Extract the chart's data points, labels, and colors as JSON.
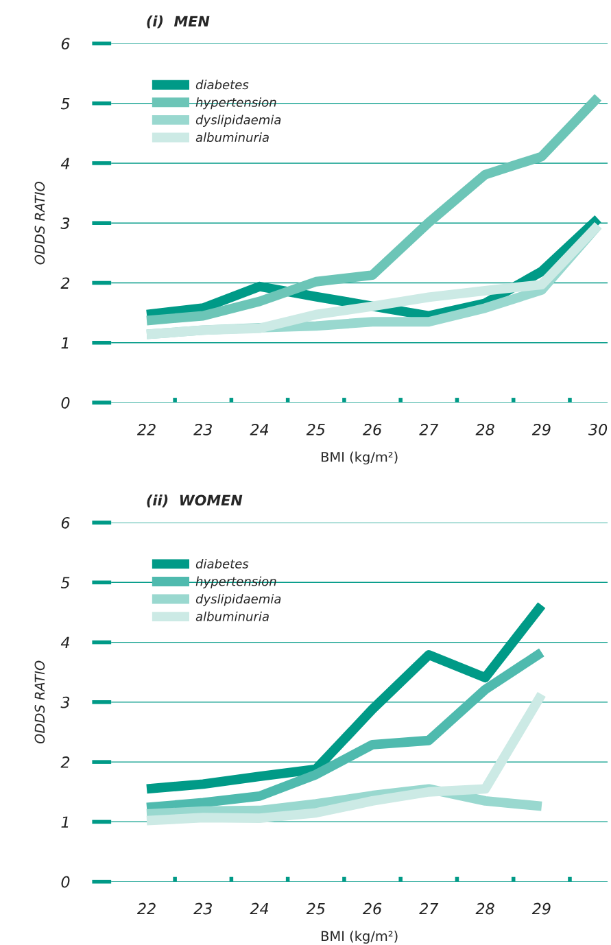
{
  "chart_data": [
    {
      "type": "line",
      "title": "(i)  MEN",
      "xlabel": "BMI (kg/m²)",
      "ylabel": "ODDS RATIO",
      "x": [
        22,
        23,
        24,
        25,
        26,
        27,
        28,
        29,
        30
      ],
      "series": [
        {
          "name": "diabetes",
          "color": "#009a87",
          "values": [
            1.47,
            1.58,
            1.94,
            1.77,
            1.61,
            1.45,
            1.66,
            2.19,
            3.07
          ]
        },
        {
          "name": "hypertension",
          "color": "#6cc5b7",
          "values": [
            1.37,
            1.45,
            1.69,
            2.02,
            2.13,
            3.01,
            3.81,
            4.11,
            5.1
          ]
        },
        {
          "name": "dyslipidaemia",
          "color": "#99d8cf",
          "values": [
            1.14,
            1.21,
            1.25,
            1.28,
            1.35,
            1.35,
            1.58,
            1.88,
            2.96
          ]
        },
        {
          "name": "albuminuria",
          "color": "#cceae5",
          "values": [
            1.14,
            1.21,
            1.24,
            1.47,
            1.61,
            1.76,
            1.87,
            1.97,
            2.96
          ]
        }
      ],
      "xlim": [
        21.37,
        30.17
      ],
      "ylim": [
        0,
        6
      ],
      "xticks": [
        22,
        {
          "value": 22.5,
          "label": null
        },
        23,
        {
          "value": 23.5,
          "label": null
        },
        24,
        {
          "value": 24.5,
          "label": null
        },
        25,
        {
          "value": 25.5,
          "label": null
        },
        26,
        {
          "value": 26.5,
          "label": null
        },
        27,
        {
          "value": 27.5,
          "label": null
        },
        28,
        {
          "value": 28.5,
          "label": null
        },
        29,
        {
          "value": 29.5,
          "label": null
        },
        30
      ],
      "yticks": [
        0,
        1,
        2,
        3,
        4,
        5,
        6
      ],
      "grid": "y",
      "legend": "top left",
      "line_style": "solid",
      "marker": "none"
    },
    {
      "type": "line",
      "title": "(ii)  WOMEN",
      "xlabel": "BMI (kg/m²)",
      "ylabel": "ODDS RATIO",
      "x": [
        22,
        23,
        24,
        25,
        26,
        27,
        28,
        29
      ],
      "series": [
        {
          "name": "diabetes",
          "color": "#009a87",
          "values": [
            1.55,
            1.63,
            1.76,
            1.88,
            2.88,
            3.79,
            3.41,
            4.62
          ]
        },
        {
          "name": "hypertension",
          "color": "#4fbaae",
          "values": [
            1.24,
            1.32,
            1.43,
            1.79,
            2.29,
            2.36,
            3.21,
            3.83
          ]
        },
        {
          "name": "dyslipidaemia",
          "color": "#99d8cf",
          "values": [
            1.13,
            1.18,
            1.19,
            1.3,
            1.44,
            1.55,
            1.35,
            1.26
          ]
        },
        {
          "name": "albuminuria",
          "color": "#cceae5",
          "values": [
            1.02,
            1.07,
            1.06,
            1.15,
            1.35,
            1.5,
            1.55,
            3.13
          ]
        }
      ],
      "xlim": [
        21.37,
        30.17
      ],
      "ylim": [
        0,
        6
      ],
      "xticks": [
        22,
        {
          "value": 22.5,
          "label": null
        },
        23,
        {
          "value": 23.5,
          "label": null
        },
        24,
        {
          "value": 24.5,
          "label": null
        },
        25,
        {
          "value": 25.5,
          "label": null
        },
        26,
        {
          "value": 26.5,
          "label": null
        },
        27,
        {
          "value": 27.5,
          "label": null
        },
        28,
        {
          "value": 28.5,
          "label": null
        },
        29,
        {
          "value": 29.5,
          "label": null
        }
      ],
      "yticks": [
        0,
        1,
        2,
        3,
        4,
        5,
        6
      ],
      "grid": "y",
      "legend": "top left",
      "line_style": "solid",
      "marker": "none"
    }
  ]
}
